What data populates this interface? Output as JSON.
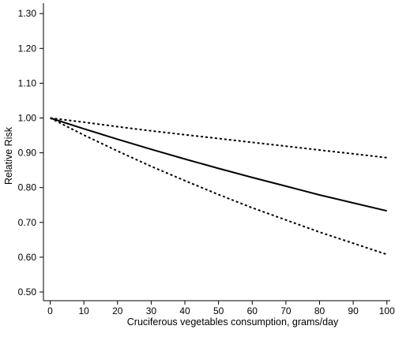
{
  "chart_data": {
    "type": "line",
    "title": "",
    "xlabel": "Cruciferous vegetables consumption, grams/day",
    "ylabel": "Relative Risk",
    "xlim": [
      -2,
      101
    ],
    "ylim": [
      0.475,
      1.33
    ],
    "x_ticks": [
      0,
      10,
      20,
      30,
      40,
      50,
      60,
      70,
      80,
      90,
      100
    ],
    "x_tick_labels": [
      "0",
      "10",
      "20",
      "30",
      "40",
      "50",
      "60",
      "70",
      "80",
      "90",
      "100"
    ],
    "y_ticks": [
      0.5,
      0.6,
      0.7,
      0.8,
      0.9,
      1.0,
      1.1,
      1.2,
      1.3
    ],
    "y_tick_labels": [
      "0.50",
      "0.60",
      "0.70",
      "0.80",
      "0.90",
      "1.00",
      "1.10",
      "1.20",
      "1.30"
    ],
    "grid": false,
    "legend": "none",
    "series": [
      {
        "style": "solid",
        "color": "#000000",
        "x": [
          0,
          10,
          20,
          30,
          40,
          50,
          60,
          70,
          80,
          90,
          100
        ],
        "y": [
          1.0,
          0.969,
          0.939,
          0.91,
          0.882,
          0.855,
          0.829,
          0.804,
          0.779,
          0.756,
          0.733
        ]
      },
      {
        "style": "dotted",
        "color": "#000000",
        "x": [
          0,
          10,
          20,
          30,
          40,
          50,
          60,
          70,
          80,
          90,
          100
        ],
        "y": [
          1.0,
          0.988,
          0.975,
          0.963,
          0.952,
          0.941,
          0.93,
          0.919,
          0.908,
          0.897,
          0.886
        ]
      },
      {
        "style": "dotted",
        "color": "#000000",
        "x": [
          0,
          10,
          20,
          30,
          40,
          50,
          60,
          70,
          80,
          90,
          100
        ],
        "y": [
          1.0,
          0.951,
          0.905,
          0.861,
          0.82,
          0.78,
          0.742,
          0.707,
          0.672,
          0.64,
          0.608
        ]
      }
    ]
  }
}
